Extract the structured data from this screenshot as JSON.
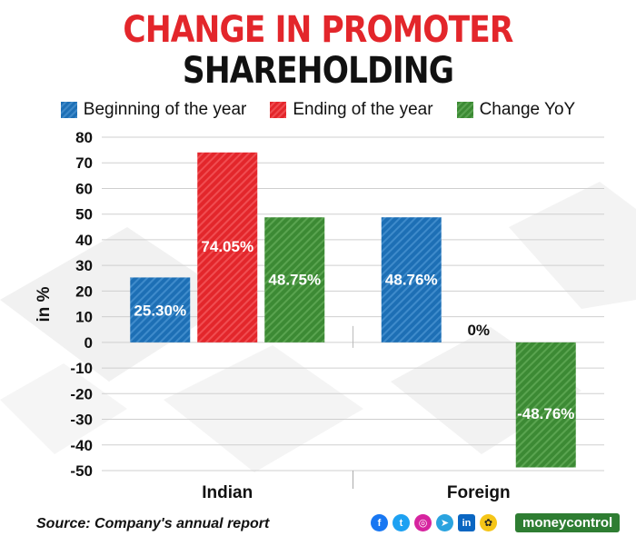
{
  "header": {
    "title_line1": "CHANGE IN PROMOTER",
    "title_line2": "SHAREHOLDING"
  },
  "colors": {
    "blue": "#1d6fb5",
    "red": "#e3262b",
    "green": "#3c8a34",
    "title_red": "#e3262b"
  },
  "chart_data": {
    "type": "bar",
    "categories": [
      "Indian",
      "Foreign"
    ],
    "series": [
      {
        "name": "Beginning of the year",
        "values": [
          25.3,
          48.76
        ],
        "labels": [
          "25.30%",
          "48.76%"
        ]
      },
      {
        "name": "Ending of the year",
        "values": [
          74.05,
          0
        ],
        "labels": [
          "74.05%",
          "0%"
        ]
      },
      {
        "name": "Change YoY",
        "values": [
          48.75,
          -48.76
        ],
        "labels": [
          "48.75%",
          "-48.76%"
        ]
      }
    ],
    "ylabel": "in %",
    "ylim": [
      -50,
      80
    ],
    "yticks": [
      80,
      70,
      60,
      50,
      40,
      30,
      20,
      10,
      0,
      -10,
      -20,
      -30,
      -40,
      -50
    ],
    "grid": true,
    "legend": "top"
  },
  "footer": {
    "source": "Source: Company's annual report",
    "brand": "moneycontrol",
    "social_icons": [
      "facebook-icon",
      "twitter-icon",
      "instagram-icon",
      "telegram-icon",
      "linkedin-icon",
      "koo-icon"
    ]
  }
}
